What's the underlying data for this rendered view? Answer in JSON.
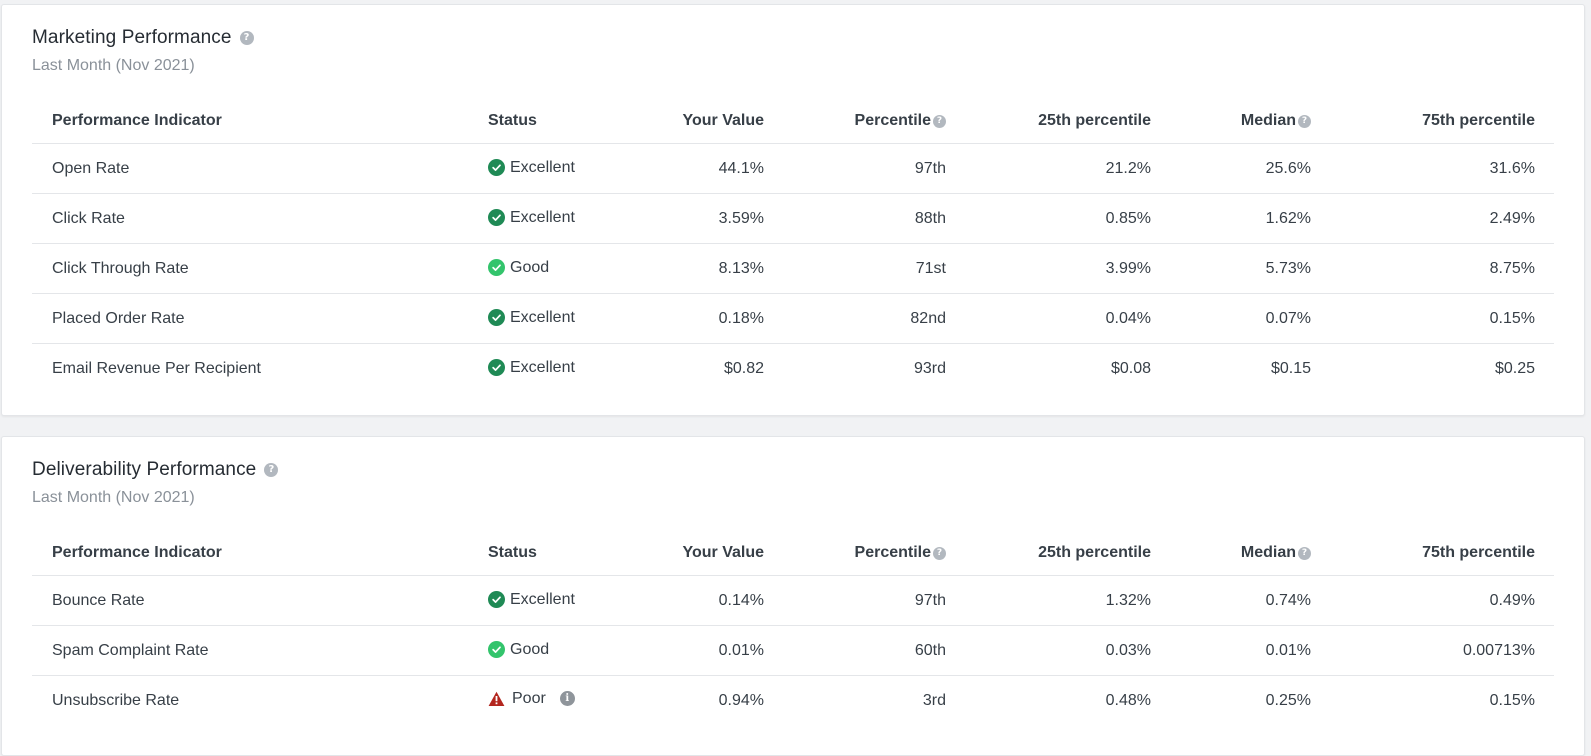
{
  "marketing": {
    "title": "Marketing Performance",
    "subtitle": "Last Month (Nov 2021)",
    "columns": [
      "Performance Indicator",
      "Status",
      "Your Value",
      "Percentile",
      "25th percentile",
      "Median",
      "75th percentile"
    ],
    "rows": [
      {
        "indicator": "Open Rate",
        "status": "Excellent",
        "value": "44.1%",
        "percentile": "97th",
        "p25": "21.2%",
        "median": "25.6%",
        "p75": "31.6%"
      },
      {
        "indicator": "Click Rate",
        "status": "Excellent",
        "value": "3.59%",
        "percentile": "88th",
        "p25": "0.85%",
        "median": "1.62%",
        "p75": "2.49%"
      },
      {
        "indicator": "Click Through Rate",
        "status": "Good",
        "value": "8.13%",
        "percentile": "71st",
        "p25": "3.99%",
        "median": "5.73%",
        "p75": "8.75%"
      },
      {
        "indicator": "Placed Order Rate",
        "status": "Excellent",
        "value": "0.18%",
        "percentile": "82nd",
        "p25": "0.04%",
        "median": "0.07%",
        "p75": "0.15%"
      },
      {
        "indicator": "Email Revenue Per Recipient",
        "status": "Excellent",
        "value": "$0.82",
        "percentile": "93rd",
        "p25": "$0.08",
        "median": "$0.15",
        "p75": "$0.25"
      }
    ]
  },
  "deliverability": {
    "title": "Deliverability Performance",
    "subtitle": "Last Month (Nov 2021)",
    "columns": [
      "Performance Indicator",
      "Status",
      "Your Value",
      "Percentile",
      "25th percentile",
      "Median",
      "75th percentile"
    ],
    "rows": [
      {
        "indicator": "Bounce Rate",
        "status": "Excellent",
        "value": "0.14%",
        "percentile": "97th",
        "p25": "1.32%",
        "median": "0.74%",
        "p75": "0.49%"
      },
      {
        "indicator": "Spam Complaint Rate",
        "status": "Good",
        "value": "0.01%",
        "percentile": "60th",
        "p25": "0.03%",
        "median": "0.01%",
        "p75": "0.00713%"
      },
      {
        "indicator": "Unsubscribe Rate",
        "status": "Poor",
        "value": "0.94%",
        "percentile": "3rd",
        "p25": "0.48%",
        "median": "0.25%",
        "p75": "0.15%"
      }
    ]
  },
  "icons": {
    "help": "?",
    "info": "i",
    "excellent": "check-circle-icon",
    "good": "check-circle-icon",
    "poor": "warning-triangle-icon"
  },
  "colors": {
    "excellent": "#1f8a55",
    "good": "#33c46c",
    "poor": "#b3261e"
  }
}
